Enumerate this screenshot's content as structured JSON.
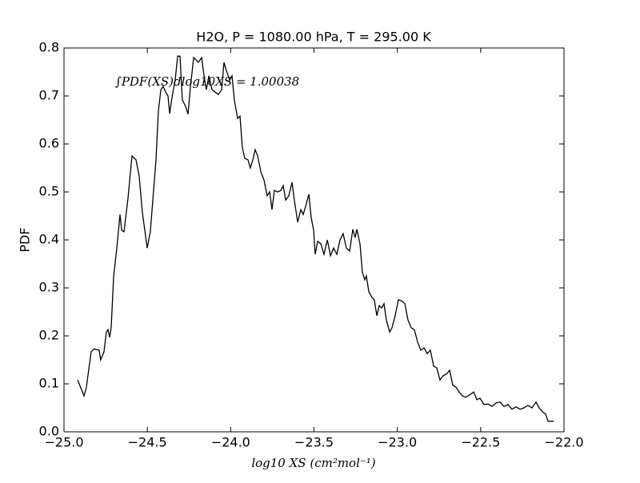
{
  "chart_data": {
    "type": "line",
    "title": "H2O, P = 1080.00 hPa, T = 295.00 K",
    "x_label": "log10 XS (cm²mol⁻¹)",
    "y_label": "PDF",
    "annotation": "∫PDF(XS)dlog10XS = 1.00038",
    "xlim": [
      -25,
      -22
    ],
    "ylim": [
      0,
      0.8
    ],
    "xticks": [
      {
        "value": -25,
        "label": "−25.0"
      },
      {
        "value": -24.5,
        "label": "−24.5"
      },
      {
        "value": -24,
        "label": "−24.0"
      },
      {
        "value": -23.5,
        "label": "−23.5"
      },
      {
        "value": -23,
        "label": "−23.0"
      },
      {
        "value": -22.5,
        "label": "−22.5"
      },
      {
        "value": -22,
        "label": "−22.0"
      }
    ],
    "yticks": [
      {
        "value": 0,
        "label": "0.0"
      },
      0.1,
      0.2,
      0.3,
      0.4,
      0.5,
      0.6,
      0.7,
      0.8
    ],
    "grid": false,
    "series": [
      {
        "color": "#000000",
        "x": [
          -24.918,
          -24.88,
          -24.866,
          -24.837,
          -24.818,
          -24.789,
          -24.78,
          -24.76,
          -24.746,
          -24.736,
          -24.726,
          -24.717,
          -24.702,
          -24.683,
          -24.664,
          -24.654,
          -24.64,
          -24.616,
          -24.592,
          -24.568,
          -24.549,
          -24.53,
          -24.501,
          -24.482,
          -24.467,
          -24.448,
          -24.434,
          -24.419,
          -24.405,
          -24.39,
          -24.376,
          -24.366,
          -24.352,
          -24.333,
          -24.318,
          -24.304,
          -24.29,
          -24.27,
          -24.256,
          -24.242,
          -24.222,
          -24.208,
          -24.194,
          -24.174,
          -24.16,
          -24.146,
          -24.131,
          -24.112,
          -24.093,
          -24.074,
          -24.054,
          -24.04,
          -24.026,
          -24.006,
          -23.992,
          -23.978,
          -23.958,
          -23.944,
          -23.93,
          -23.915,
          -23.896,
          -23.882,
          -23.867,
          -23.853,
          -23.838,
          -23.819,
          -23.8,
          -23.781,
          -23.766,
          -23.752,
          -23.738,
          -23.718,
          -23.699,
          -23.685,
          -23.67,
          -23.651,
          -23.632,
          -23.618,
          -23.598,
          -23.579,
          -23.565,
          -23.546,
          -23.531,
          -23.517,
          -23.502,
          -23.493,
          -23.478,
          -23.459,
          -23.44,
          -23.42,
          -23.401,
          -23.382,
          -23.363,
          -23.344,
          -23.325,
          -23.306,
          -23.286,
          -23.267,
          -23.253,
          -23.243,
          -23.224,
          -23.21,
          -23.195,
          -23.186,
          -23.171,
          -23.152,
          -23.138,
          -23.123,
          -23.109,
          -23.094,
          -23.08,
          -23.066,
          -23.046,
          -23.032,
          -23.013,
          -22.994,
          -22.974,
          -22.955,
          -22.936,
          -22.917,
          -22.898,
          -22.878,
          -22.859,
          -22.84,
          -22.821,
          -22.802,
          -22.782,
          -22.763,
          -22.744,
          -22.725,
          -22.706,
          -22.686,
          -22.667,
          -22.648,
          -22.629,
          -22.61,
          -22.59,
          -22.566,
          -22.542,
          -22.523,
          -22.504,
          -22.48,
          -22.456,
          -22.432,
          -22.408,
          -22.384,
          -22.36,
          -22.336,
          -22.312,
          -22.288,
          -22.264,
          -22.24,
          -22.216,
          -22.192,
          -22.168,
          -22.149,
          -22.13,
          -22.11,
          -22.096,
          -22.062
        ],
        "values": [
          0.108,
          0.075,
          0.092,
          0.167,
          0.173,
          0.17,
          0.15,
          0.167,
          0.208,
          0.213,
          0.197,
          0.217,
          0.325,
          0.383,
          0.453,
          0.42,
          0.417,
          0.487,
          0.575,
          0.567,
          0.533,
          0.458,
          0.383,
          0.417,
          0.483,
          0.567,
          0.667,
          0.713,
          0.72,
          0.708,
          0.7,
          0.663,
          0.697,
          0.733,
          0.783,
          0.783,
          0.692,
          0.678,
          0.662,
          0.717,
          0.78,
          0.775,
          0.77,
          0.78,
          0.742,
          0.713,
          0.742,
          0.713,
          0.708,
          0.703,
          0.713,
          0.77,
          0.753,
          0.733,
          0.742,
          0.692,
          0.653,
          0.658,
          0.592,
          0.57,
          0.567,
          0.55,
          0.567,
          0.588,
          0.575,
          0.542,
          0.525,
          0.492,
          0.5,
          0.463,
          0.503,
          0.5,
          0.503,
          0.513,
          0.483,
          0.492,
          0.52,
          0.483,
          0.437,
          0.463,
          0.453,
          0.475,
          0.495,
          0.447,
          0.42,
          0.37,
          0.397,
          0.392,
          0.37,
          0.4,
          0.367,
          0.383,
          0.37,
          0.4,
          0.413,
          0.383,
          0.377,
          0.422,
          0.405,
          0.422,
          0.392,
          0.333,
          0.317,
          0.325,
          0.292,
          0.28,
          0.275,
          0.242,
          0.263,
          0.258,
          0.267,
          0.233,
          0.208,
          0.217,
          0.242,
          0.275,
          0.273,
          0.267,
          0.233,
          0.217,
          0.213,
          0.187,
          0.17,
          0.175,
          0.163,
          0.17,
          0.137,
          0.133,
          0.108,
          0.117,
          0.12,
          0.128,
          0.097,
          0.093,
          0.083,
          0.075,
          0.072,
          0.077,
          0.083,
          0.067,
          0.07,
          0.057,
          0.058,
          0.053,
          0.06,
          0.062,
          0.053,
          0.057,
          0.047,
          0.052,
          0.047,
          0.05,
          0.055,
          0.05,
          0.062,
          0.05,
          0.042,
          0.037,
          0.022,
          0.022
        ]
      }
    ]
  }
}
